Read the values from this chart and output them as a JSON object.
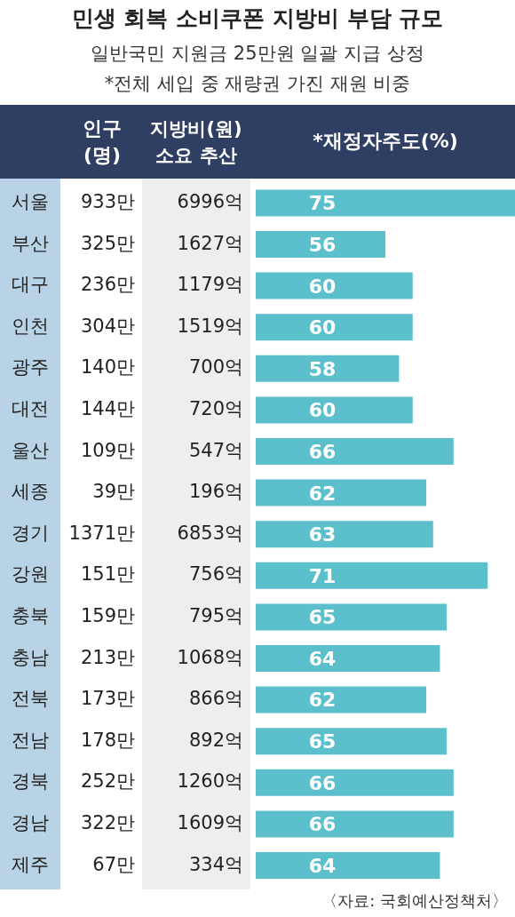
{
  "chart_data": {
    "type": "bar",
    "orientation": "horizontal",
    "title": "민생 회복 소비쿠폰 지방비 부담 규모",
    "subtitle": "일반국민 지원금 25만원 일괄 지급 상정\n*전체 세입 중 재량권 가진 재원 비중",
    "categories": [
      "서울",
      "부산",
      "대구",
      "인천",
      "광주",
      "대전",
      "울산",
      "세종",
      "경기",
      "강원",
      "충북",
      "충남",
      "전북",
      "전남",
      "경북",
      "경남",
      "제주"
    ],
    "xlim": [
      37,
      75
    ],
    "data_labels": true,
    "tick_labels": false,
    "series": [
      {
        "name": "*재정자주도(%)",
        "color": "#5bbfcc",
        "values": [
          75,
          56,
          60,
          60,
          58,
          60,
          66,
          62,
          63,
          71,
          65,
          64,
          62,
          65,
          66,
          66,
          64
        ]
      }
    ],
    "annotations": [
      "인구\n(명)",
      "933만",
      "325만",
      "236만",
      "304만",
      "140만",
      "144만",
      "109만",
      "39만",
      "1371만",
      "151만",
      "159만",
      "213만",
      "173만",
      "178만",
      "252만",
      "322만",
      "67만",
      "지방비(원)\n소요 추산",
      "6996억",
      "1627억",
      "1179억",
      "1519억",
      "700억",
      "720억",
      "547억",
      "196억",
      "6853억",
      "756억",
      "795억",
      "1068억",
      "866억",
      "892억",
      "1260억",
      "1609억",
      "334억",
      "〈자료: 국회예산정책처〉"
    ]
  }
}
